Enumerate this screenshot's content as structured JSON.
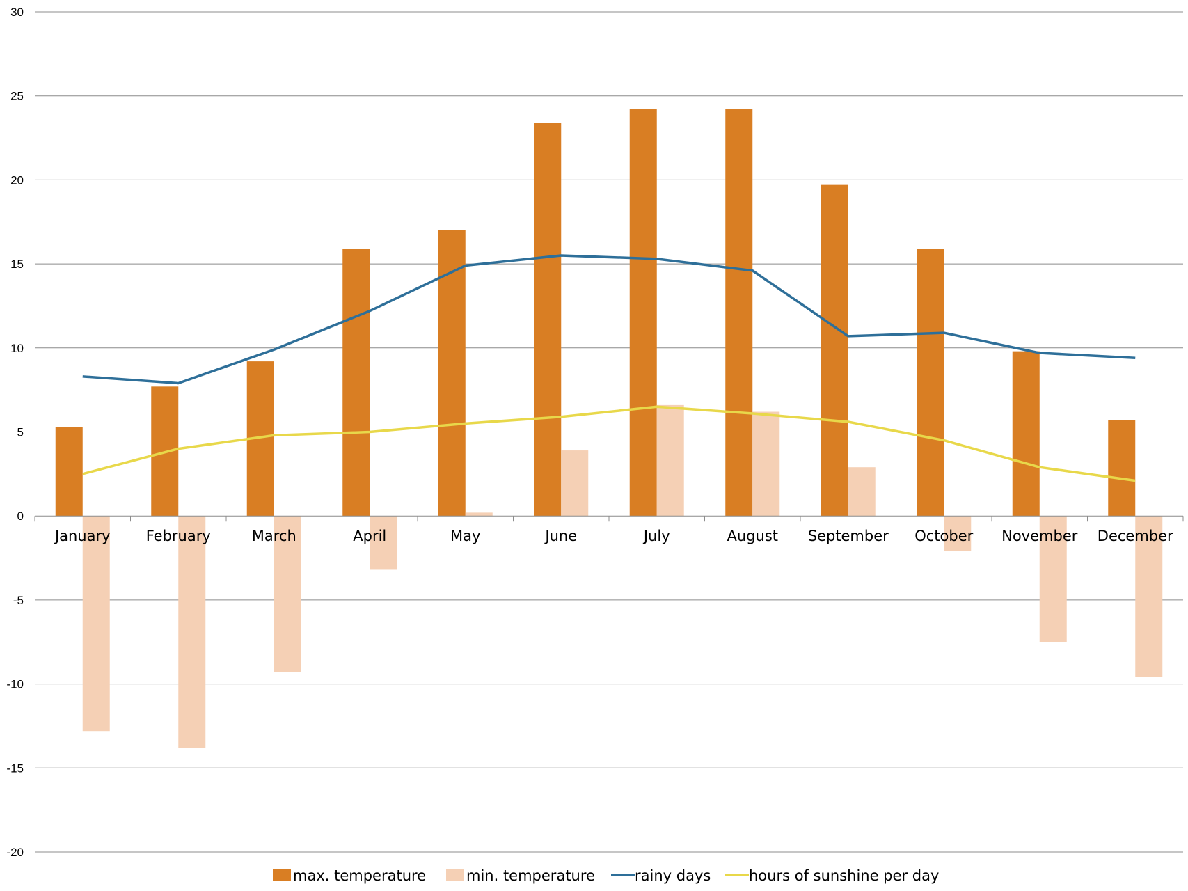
{
  "chart_data": {
    "type": "bar",
    "categories": [
      "January",
      "February",
      "March",
      "April",
      "May",
      "June",
      "July",
      "August",
      "September",
      "October",
      "November",
      "December"
    ],
    "ylim": [
      -20,
      30
    ],
    "yticks": [
      30,
      25,
      20,
      15,
      10,
      5,
      0,
      -5,
      -10,
      -15,
      -20
    ],
    "grid": true,
    "legend_position": "bottom",
    "series": [
      {
        "name": "max.  temperature",
        "kind": "bar",
        "color": "#d97e23",
        "values": [
          5.3,
          7.7,
          9.2,
          15.9,
          17.0,
          23.4,
          24.2,
          24.2,
          19.7,
          15.9,
          9.8,
          5.7
        ]
      },
      {
        "name": "min. temperature",
        "kind": "bar",
        "color": "#f5d0b5",
        "values": [
          -12.8,
          -13.8,
          -9.3,
          -3.2,
          0.2,
          3.9,
          6.6,
          6.2,
          2.9,
          -2.1,
          -7.5,
          -9.6
        ]
      },
      {
        "name": "rainy days",
        "kind": "line",
        "color": "#2e6f99",
        "values": [
          8.3,
          7.9,
          9.9,
          12.2,
          14.9,
          15.5,
          15.3,
          14.6,
          10.7,
          10.9,
          9.7,
          9.4
        ]
      },
      {
        "name": "hours of sunshine per day",
        "kind": "line",
        "color": "#e8d84a",
        "values": [
          2.5,
          4.0,
          4.8,
          5.0,
          5.5,
          5.9,
          6.5,
          6.1,
          5.6,
          4.5,
          2.9,
          2.1
        ]
      }
    ]
  }
}
